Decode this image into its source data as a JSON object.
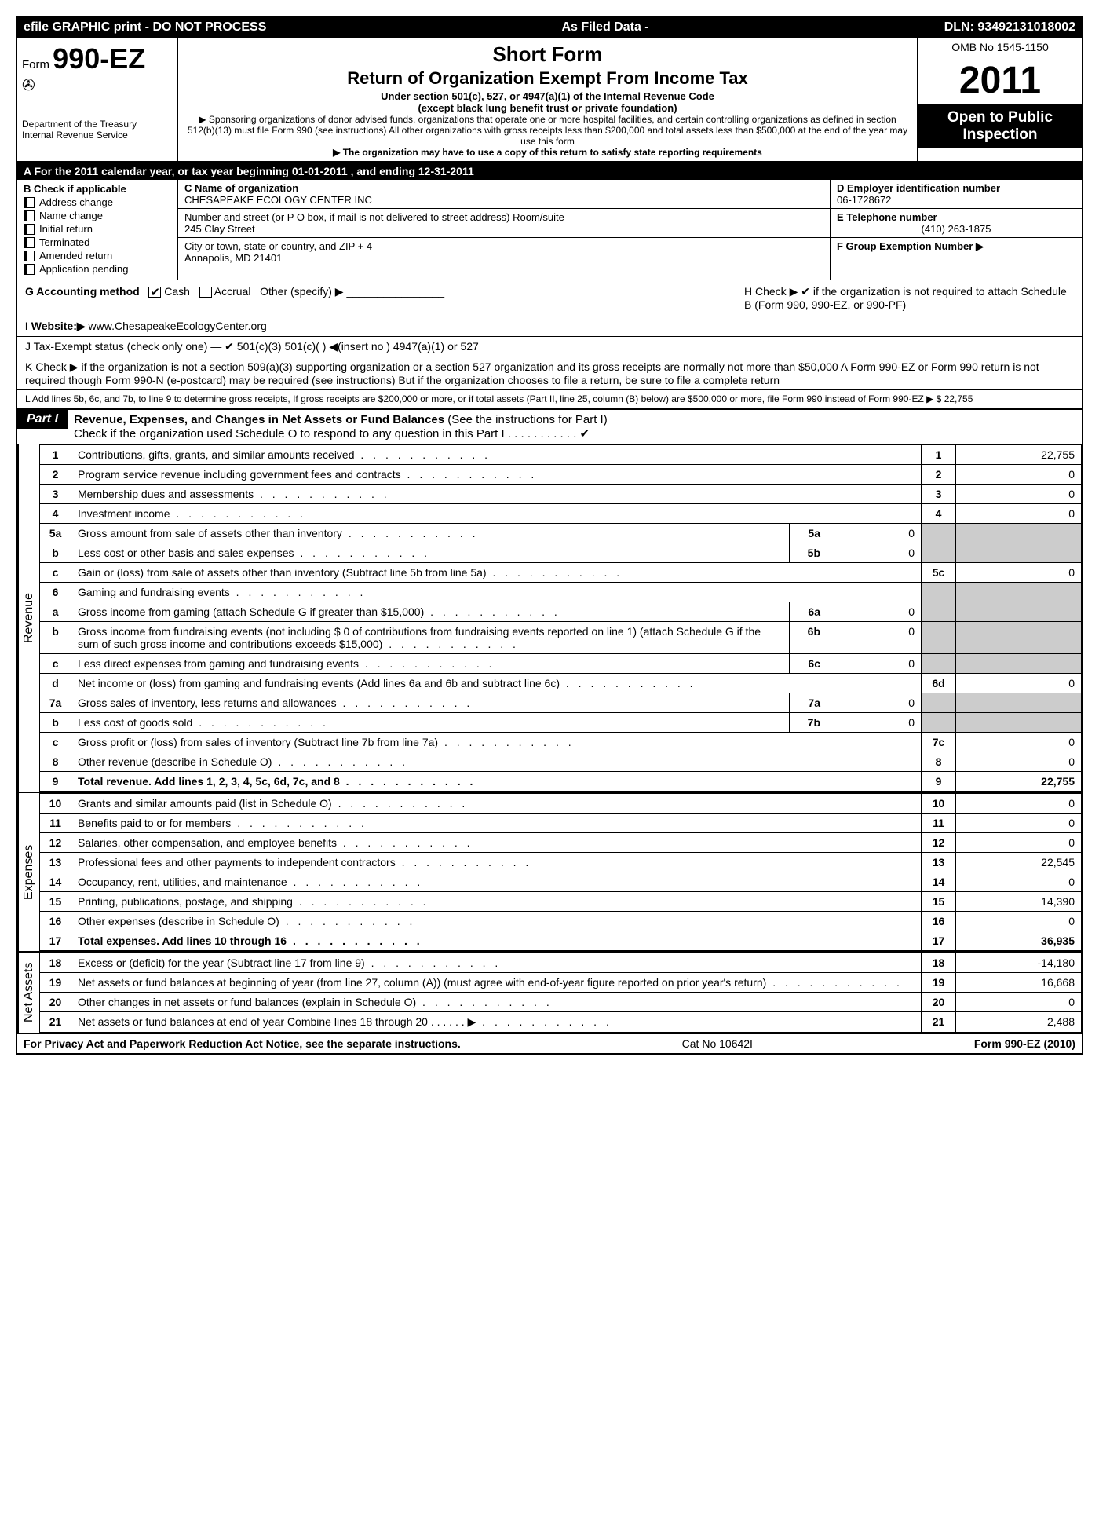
{
  "top_bar": {
    "left": "efile GRAPHIC print - DO NOT PROCESS",
    "mid": "As Filed Data -",
    "right": "DLN: 93492131018002"
  },
  "header": {
    "form_prefix": "Form",
    "form_number": "990-EZ",
    "dept1": "Department of the Treasury",
    "dept2": "Internal Revenue Service",
    "title1": "Short Form",
    "title2": "Return of Organization Exempt From Income Tax",
    "subtitle1": "Under section 501(c), 527, or 4947(a)(1) of the Internal Revenue Code",
    "subtitle2": "(except black lung benefit trust or private foundation)",
    "note1": "▶ Sponsoring organizations of donor advised funds, organizations that operate one or more hospital facilities, and certain controlling organizations as defined in section 512(b)(13) must file Form 990 (see instructions) All other organizations with gross receipts less than $200,000 and total assets less than $500,000 at the end of the year may use this form",
    "note2": "▶ The organization may have to use a copy of this return to satisfy state reporting requirements",
    "omb": "OMB No 1545-1150",
    "year": "2011",
    "inspection": "Open to Public Inspection"
  },
  "section_a": "A  For the 2011 calendar year, or tax year beginning 01-01-2011          , and ending 12-31-2011",
  "col_b": {
    "title": "B  Check if applicable",
    "items": [
      "Address change",
      "Name change",
      "Initial return",
      "Terminated",
      "Amended return",
      "Application pending"
    ]
  },
  "col_c": {
    "name_label": "C Name of organization",
    "name": "CHESAPEAKE ECOLOGY CENTER INC",
    "street_label": "Number and street (or P O box, if mail is not delivered to street address) Room/suite",
    "street": "245 Clay Street",
    "city_label": "City or town, state or country, and ZIP + 4",
    "city": "Annapolis, MD 21401"
  },
  "col_d": {
    "ein_label": "D Employer identification number",
    "ein": "06-1728672",
    "tel_label": "E Telephone number",
    "tel": "(410) 263-1875",
    "group_label": "F Group Exemption Number    ▶"
  },
  "line_g": {
    "label": "G Accounting method",
    "cash": "Cash",
    "accrual": "Accrual",
    "other": "Other (specify) ▶"
  },
  "line_h": "H   Check ▶  ✔  if the organization is not required to attach Schedule B (Form 990, 990-EZ, or 990-PF)",
  "line_i": {
    "label": "I Website:▶",
    "value": "www.ChesapeakeEcologyCenter.org"
  },
  "line_j": "J Tax-Exempt status (check only one) — ✔ 501(c)(3)     501(c)(  ) ◀(insert no )     4947(a)(1) or     527",
  "line_k": "K Check ▶    if the organization is not a section 509(a)(3) supporting organization or a section 527 organization and its gross receipts are normally not more than   $50,000  A Form 990-EZ or Form 990 return is not required though Form 990-N (e-postcard) may be required (see instructions)  But if the   organization chooses to file a return, be sure to file a complete return",
  "line_l": "L Add lines 5b, 6c, and 7b, to line 9 to determine gross receipts, If gross receipts are $200,000 or more, or if total assets (Part II, line 25, column (B) below) are $500,000 or more,   file Form 990 instead of Form 990-EZ              ▶ $           22,755",
  "part1": {
    "label": "Part I",
    "title": "Revenue, Expenses, and Changes in Net Assets or Fund Balances",
    "note": "(See the instructions for Part I)",
    "check_note": "Check if the organization used Schedule O to respond to any question in this Part I   .   .   .   .   .   .   .   .   .   .   . ✔"
  },
  "sections": {
    "revenue": "Revenue",
    "expenses": "Expenses",
    "netassets": "Net Assets"
  },
  "rows": [
    {
      "n": "1",
      "desc": "Contributions, gifts, grants, and similar amounts received",
      "ln": "1",
      "val": "22,755"
    },
    {
      "n": "2",
      "desc": "Program service revenue including government fees and contracts",
      "ln": "2",
      "val": "0"
    },
    {
      "n": "3",
      "desc": "Membership dues and assessments",
      "ln": "3",
      "val": "0"
    },
    {
      "n": "4",
      "desc": "Investment income",
      "ln": "4",
      "val": "0"
    },
    {
      "n": "5a",
      "desc": "Gross amount from sale of assets other than inventory",
      "sub": "5a",
      "subval": "0"
    },
    {
      "n": "b",
      "desc": "Less cost or other basis and sales expenses",
      "sub": "5b",
      "subval": "0"
    },
    {
      "n": "c",
      "desc": "Gain or (loss) from sale of assets other than inventory (Subtract line 5b from line 5a)",
      "ln": "5c",
      "val": "0"
    },
    {
      "n": "6",
      "desc": "Gaming and fundraising events"
    },
    {
      "n": "a",
      "desc": "Gross income from gaming (attach Schedule G if greater than $15,000)",
      "sub": "6a",
      "subval": "0"
    },
    {
      "n": "b",
      "desc": "Gross income from fundraising events (not including $ 0 of contributions from fundraising events reported on line 1) (attach Schedule G if the sum of such gross income and contributions exceeds $15,000)",
      "sub": "6b",
      "subval": "0"
    },
    {
      "n": "c",
      "desc": "Less  direct expenses from gaming and fundraising events",
      "sub": "6c",
      "subval": "0"
    },
    {
      "n": "d",
      "desc": "Net income or (loss) from gaming and fundraising events (Add lines 6a and 6b and subtract line 6c)",
      "ln": "6d",
      "val": "0"
    },
    {
      "n": "7a",
      "desc": "Gross sales of inventory, less returns and allowances",
      "sub": "7a",
      "subval": "0"
    },
    {
      "n": "b",
      "desc": "Less  cost of goods sold",
      "sub": "7b",
      "subval": "0"
    },
    {
      "n": "c",
      "desc": "Gross profit or (loss) from sales of inventory (Subtract line 7b from line 7a)",
      "ln": "7c",
      "val": "0"
    },
    {
      "n": "8",
      "desc": "Other revenue (describe in Schedule O)",
      "ln": "8",
      "val": "0"
    },
    {
      "n": "9",
      "desc": "Total revenue. Add lines 1, 2, 3, 4, 5c, 6d, 7c, and 8",
      "ln": "9",
      "val": "22,755",
      "bold": true
    }
  ],
  "exp_rows": [
    {
      "n": "10",
      "desc": "Grants and similar amounts paid (list in Schedule O)",
      "ln": "10",
      "val": "0"
    },
    {
      "n": "11",
      "desc": "Benefits paid to or for members",
      "ln": "11",
      "val": "0"
    },
    {
      "n": "12",
      "desc": "Salaries, other compensation, and employee benefits",
      "ln": "12",
      "val": "0"
    },
    {
      "n": "13",
      "desc": "Professional fees and other payments to independent contractors",
      "ln": "13",
      "val": "22,545"
    },
    {
      "n": "14",
      "desc": "Occupancy, rent, utilities, and maintenance",
      "ln": "14",
      "val": "0"
    },
    {
      "n": "15",
      "desc": "Printing, publications, postage, and shipping",
      "ln": "15",
      "val": "14,390"
    },
    {
      "n": "16",
      "desc": "Other expenses (describe in Schedule O)",
      "ln": "16",
      "val": "0"
    },
    {
      "n": "17",
      "desc": "Total expenses. Add lines 10 through 16",
      "ln": "17",
      "val": "36,935",
      "bold": true
    }
  ],
  "net_rows": [
    {
      "n": "18",
      "desc": "Excess or (deficit) for the year (Subtract line 17 from line 9)",
      "ln": "18",
      "val": "-14,180"
    },
    {
      "n": "19",
      "desc": "Net assets or fund balances at beginning of year (from line 27, column (A)) (must agree with end-of-year figure reported on prior year's return)",
      "ln": "19",
      "val": "16,668"
    },
    {
      "n": "20",
      "desc": "Other changes in net assets or fund balances (explain in Schedule O)",
      "ln": "20",
      "val": "0"
    },
    {
      "n": "21",
      "desc": "Net assets or fund balances at end of year  Combine lines 18 through 20    .   .   .   .   .   . ▶",
      "ln": "21",
      "val": "2,488"
    }
  ],
  "footer": {
    "left": "For Privacy Act and Paperwork Reduction Act Notice, see the separate instructions.",
    "mid": "Cat No 10642I",
    "right": "Form 990-EZ (2010)"
  }
}
